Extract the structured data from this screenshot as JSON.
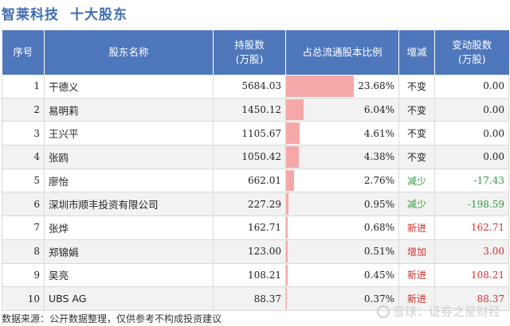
{
  "header": {
    "company": "智莱科技",
    "section": "十大股东"
  },
  "columns": {
    "rank": "序号",
    "name": "股东名称",
    "shares_line1": "持股数",
    "shares_line2": "(万股)",
    "ratio": "占总流通股本比例",
    "change_type": "增减",
    "change_line1": "变动股数",
    "change_line2": "(万股)"
  },
  "rows": [
    {
      "rank": "1",
      "name": "干德义",
      "shares": "5684.03",
      "ratio": "23.68%",
      "ratio_value": 23.68,
      "change_type": "不变",
      "change": "0.00",
      "status": "same"
    },
    {
      "rank": "2",
      "name": "易明莉",
      "shares": "1450.12",
      "ratio": "6.04%",
      "ratio_value": 6.04,
      "change_type": "不变",
      "change": "0.00",
      "status": "same"
    },
    {
      "rank": "3",
      "name": "王兴平",
      "shares": "1105.67",
      "ratio": "4.61%",
      "ratio_value": 4.61,
      "change_type": "不变",
      "change": "0.00",
      "status": "same"
    },
    {
      "rank": "4",
      "name": "张鸥",
      "shares": "1050.42",
      "ratio": "4.38%",
      "ratio_value": 4.38,
      "change_type": "不变",
      "change": "0.00",
      "status": "same"
    },
    {
      "rank": "5",
      "name": "廖怡",
      "shares": "662.01",
      "ratio": "2.76%",
      "ratio_value": 2.76,
      "change_type": "减少",
      "change": "-17.43",
      "status": "down"
    },
    {
      "rank": "6",
      "name": "深圳市顺丰投资有限公司",
      "shares": "227.29",
      "ratio": "0.95%",
      "ratio_value": 0.95,
      "change_type": "减少",
      "change": "-198.59",
      "status": "down"
    },
    {
      "rank": "7",
      "name": "张烨",
      "shares": "162.71",
      "ratio": "0.68%",
      "ratio_value": 0.68,
      "change_type": "新进",
      "change": "162.71",
      "status": "up"
    },
    {
      "rank": "8",
      "name": "郑锦娟",
      "shares": "123.00",
      "ratio": "0.51%",
      "ratio_value": 0.51,
      "change_type": "增加",
      "change": "3.00",
      "status": "up"
    },
    {
      "rank": "9",
      "name": "吴亮",
      "shares": "108.21",
      "ratio": "0.45%",
      "ratio_value": 0.45,
      "change_type": "新进",
      "change": "108.21",
      "status": "up"
    },
    {
      "rank": "10",
      "name": "UBS AG",
      "shares": "88.37",
      "ratio": "0.37%",
      "ratio_value": 0.37,
      "change_type": "新进",
      "change": "88.37",
      "status": "up"
    }
  ],
  "ratio_bar": {
    "max_percent": 25,
    "color": "#f6a8a8"
  },
  "footer": {
    "source": "数据来源：公开数据整理，仅供参考不构成投资建议"
  },
  "brand": {
    "text": "雪球：证券之星财经",
    "logo_icon": "snowball-logo-icon"
  },
  "colors": {
    "header_bg": "#4f77bb",
    "title": "#3f6db4",
    "increase": "#d0312d",
    "decrease": "#2e9e3c"
  }
}
